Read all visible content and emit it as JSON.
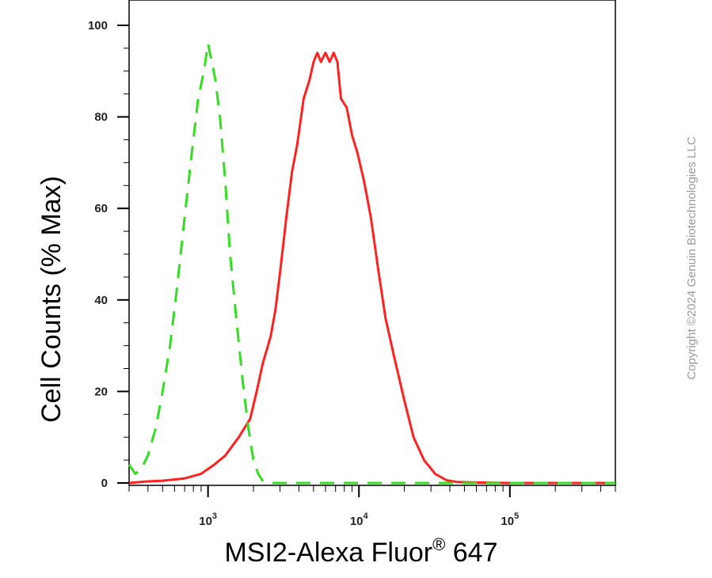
{
  "chart_data": {
    "type": "line",
    "title": "",
    "xlabel": "MSI2-Alexa Fluor",
    "xlabel_superscript": "®",
    "xlabel_suffix": " 647",
    "ylabel": "Cell Counts (% Max)",
    "xscale": "log",
    "xlim": [
      300,
      500000
    ],
    "ylim": [
      0,
      100
    ],
    "yticks": [
      0,
      20,
      40,
      60,
      80,
      100
    ],
    "xticks": [
      {
        "value": 1000,
        "base": "10",
        "exp": "3"
      },
      {
        "value": 10000,
        "base": "10",
        "exp": "4"
      },
      {
        "value": 100000,
        "base": "10",
        "exp": "5"
      }
    ],
    "grid": false,
    "series": [
      {
        "color": "#ff2020",
        "style": "solid",
        "x": [
          300,
          380,
          500,
          700,
          900,
          1100,
          1300,
          1600,
          1900,
          2100,
          2300,
          2600,
          2800,
          3000,
          3300,
          3600,
          3900,
          4300,
          4700,
          5000,
          5300,
          5600,
          6000,
          6400,
          6800,
          7200,
          7600,
          8300,
          9000,
          9800,
          10800,
          12000,
          13500,
          15000,
          17000,
          20000,
          23000,
          27000,
          32000,
          38000,
          45000,
          60000,
          100000,
          200000,
          500000
        ],
        "y": [
          0,
          0.3,
          0.5,
          1,
          2,
          4,
          6,
          10,
          14,
          20,
          26,
          32,
          38,
          46,
          58,
          68,
          74,
          84,
          88,
          92,
          94,
          92,
          94,
          92,
          94,
          92,
          84,
          82,
          76,
          72,
          66,
          58,
          46,
          36,
          28,
          18,
          10,
          5,
          2,
          0.6,
          0.2,
          0.1,
          0,
          0,
          0
        ]
      },
      {
        "color": "#33dd22",
        "style": "dashed",
        "x": [
          300,
          330,
          360,
          400,
          450,
          500,
          560,
          620,
          700,
          780,
          860,
          940,
          1000,
          1060,
          1120,
          1200,
          1300,
          1400,
          1550,
          1700,
          1850,
          2000,
          2150,
          2300,
          2500,
          3000,
          4000,
          10000,
          100000,
          500000
        ],
        "y": [
          4,
          2,
          3,
          6,
          12,
          20,
          30,
          42,
          58,
          72,
          84,
          90,
          96,
          92,
          88,
          80,
          66,
          50,
          35,
          22,
          12,
          5,
          2,
          0.5,
          0,
          0,
          0,
          0,
          0,
          0
        ]
      }
    ]
  },
  "copyright": "Copyright ©2024 Genuin Biotechnologies LLC"
}
